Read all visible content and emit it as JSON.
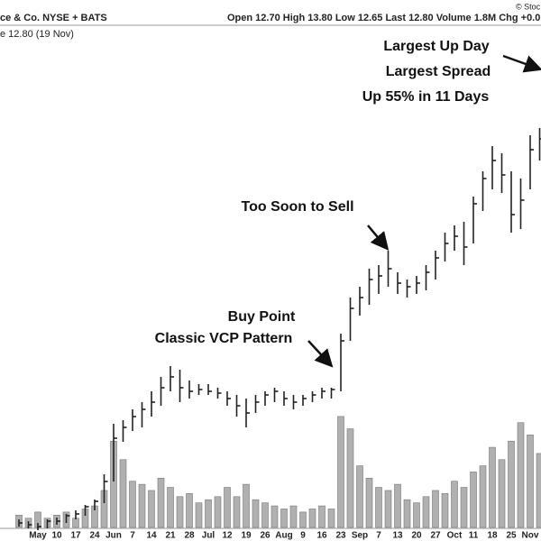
{
  "header": {
    "symbol": "ce & Co. NYSE + BATS",
    "quote": "Open 12.70  High 13.80  Low 12.65  Last 12.80  Volume 1.8M  Chg +0.0",
    "source": "© Stoc",
    "last": "e 12.80 (19 Nov)"
  },
  "chart_data": {
    "type": "ohlc",
    "categories": [
      null,
      null,
      "May",
      null,
      "10",
      null,
      "17",
      null,
      "24",
      null,
      "Jun",
      null,
      "7",
      null,
      "14",
      null,
      "21",
      null,
      "28",
      null,
      "Jul",
      null,
      "12",
      null,
      "19",
      null,
      "26",
      null,
      "Aug",
      null,
      "9",
      null,
      "16",
      null,
      "23",
      null,
      "Sep",
      null,
      "7",
      null,
      "13",
      null,
      "20",
      null,
      "27",
      null,
      "Oct",
      null,
      "11",
      null,
      "18",
      null,
      "25",
      null,
      "Nov",
      null
    ],
    "high": [
      1.35,
      1.3,
      1.25,
      1.35,
      1.4,
      1.5,
      1.6,
      1.75,
      1.9,
      2.6,
      4.0,
      4.1,
      4.4,
      4.6,
      4.9,
      5.3,
      5.6,
      5.5,
      5.2,
      5.1,
      5.1,
      5.0,
      4.9,
      4.8,
      4.7,
      4.8,
      4.9,
      5.0,
      4.9,
      4.8,
      4.8,
      4.9,
      5.0,
      5.0,
      6.5,
      7.5,
      7.8,
      8.3,
      8.4,
      8.8,
      8.2,
      8.0,
      8.1,
      8.4,
      8.8,
      9.3,
      9.5,
      9.6,
      10.3,
      11.0,
      11.7,
      11.5,
      11.0,
      10.8,
      12.0,
      12.2
    ],
    "low": [
      1.15,
      1.1,
      1.05,
      1.1,
      1.2,
      1.25,
      1.35,
      1.45,
      1.6,
      1.8,
      2.4,
      3.5,
      3.8,
      3.9,
      4.2,
      4.5,
      4.9,
      4.6,
      4.7,
      4.8,
      4.8,
      4.7,
      4.5,
      4.2,
      3.9,
      4.3,
      4.5,
      4.6,
      4.5,
      4.4,
      4.5,
      4.6,
      4.7,
      4.7,
      4.9,
      6.3,
      7.0,
      7.3,
      7.6,
      7.8,
      7.6,
      7.5,
      7.6,
      7.7,
      8.0,
      8.5,
      8.8,
      8.4,
      9.0,
      9.9,
      10.5,
      10.4,
      9.3,
      9.4,
      10.5,
      11.3
    ],
    "close": [
      1.25,
      1.2,
      1.15,
      1.3,
      1.3,
      1.45,
      1.5,
      1.7,
      1.85,
      2.4,
      3.6,
      3.9,
      4.2,
      4.4,
      4.6,
      5.0,
      5.3,
      5.0,
      4.9,
      4.95,
      4.9,
      4.85,
      4.7,
      4.5,
      4.3,
      4.6,
      4.8,
      4.9,
      4.7,
      4.6,
      4.7,
      4.8,
      4.9,
      4.95,
      6.3,
      7.2,
      7.5,
      8.0,
      8.1,
      8.3,
      7.9,
      7.8,
      7.9,
      8.2,
      8.6,
      9.0,
      9.2,
      8.9,
      10.1,
      10.8,
      11.3,
      10.9,
      9.8,
      10.2,
      11.6,
      11.9
    ],
    "volume": [
      0.4,
      0.3,
      0.5,
      0.3,
      0.4,
      0.5,
      0.3,
      0.6,
      0.7,
      1.2,
      2.8,
      2.2,
      1.5,
      1.4,
      1.2,
      1.6,
      1.3,
      1.0,
      1.1,
      0.8,
      0.9,
      1.0,
      1.3,
      1.0,
      1.4,
      0.9,
      0.8,
      0.7,
      0.6,
      0.7,
      0.5,
      0.6,
      0.7,
      0.6,
      3.6,
      3.2,
      2.0,
      1.6,
      1.3,
      1.2,
      1.4,
      0.9,
      0.8,
      1.0,
      1.2,
      1.1,
      1.5,
      1.3,
      1.8,
      2.0,
      2.6,
      2.2,
      2.8,
      3.4,
      3.0,
      2.4
    ],
    "ylim": [
      1,
      15
    ],
    "y2lim": [
      0,
      5
    ],
    "color": "#222222",
    "volume_color": "#b0b0b0",
    "annotations": [
      "Largest Up Day",
      "Largest Spread",
      "Up 55% in 11 Days",
      "Too Soon to Sell",
      "Buy Point",
      "Classic VCP Pattern"
    ]
  }
}
